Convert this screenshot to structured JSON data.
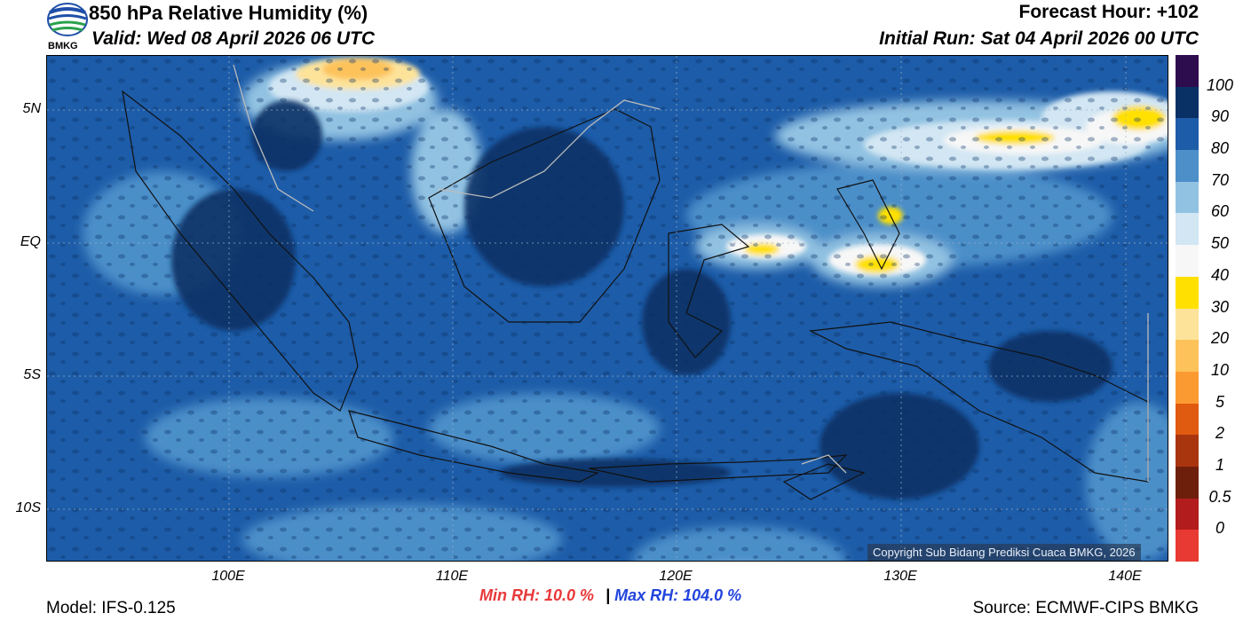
{
  "header": {
    "title": "850 hPa Relative Humidity (%)",
    "valid": "Valid: Wed 08 April 2026 06 UTC",
    "forecast_hour": "Forecast Hour: +102",
    "initial_run": "Initial Run: Sat 04 April 2026 00 UTC",
    "logo_text": "BMKG"
  },
  "axes": {
    "lat_labels": [
      "5N",
      "EQ",
      "5S",
      "10S"
    ],
    "lon_labels": [
      "100E",
      "110E",
      "120E",
      "130E",
      "140E"
    ]
  },
  "colorbar": {
    "labels": [
      "100",
      "90",
      "80",
      "70",
      "60",
      "50",
      "40",
      "30",
      "20",
      "10",
      "5",
      "2",
      "1",
      "0.5",
      "0"
    ],
    "colors": [
      "#2e0d4f",
      "#0a3166",
      "#1d5ca8",
      "#4c8fc9",
      "#92c2e2",
      "#d2e6f3",
      "#f7f7f7",
      "#ffe000",
      "#fde39a",
      "#fdc25a",
      "#fc9a32",
      "#e05a0f",
      "#a9350f",
      "#6e1f0b",
      "#b31c1c",
      "#e83a32"
    ]
  },
  "stats": {
    "min": "Min RH:  10.0 %",
    "separator": "|",
    "max": "Max RH: 104.0 %",
    "min_color": "#e8383a",
    "max_color": "#2244dd"
  },
  "footer": {
    "model": "Model: IFS-0.125",
    "source": "Source: ECMWF-CIPS BMKG",
    "copyright": "Copyright Sub Bidang Prediksi Cuaca BMKG, 2026"
  }
}
